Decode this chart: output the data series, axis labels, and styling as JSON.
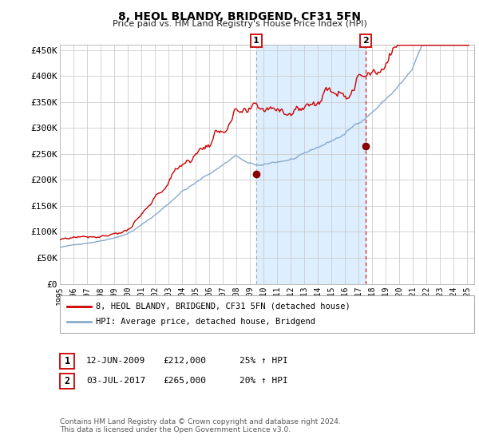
{
  "title": "8, HEOL BLANDY, BRIDGEND, CF31 5FN",
  "subtitle": "Price paid vs. HM Land Registry's House Price Index (HPI)",
  "ylabel_ticks": [
    "£0",
    "£50K",
    "£100K",
    "£150K",
    "£200K",
    "£250K",
    "£300K",
    "£350K",
    "£400K",
    "£450K"
  ],
  "ytick_values": [
    0,
    50000,
    100000,
    150000,
    200000,
    250000,
    300000,
    350000,
    400000,
    450000
  ],
  "ylim": [
    0,
    460000
  ],
  "red_line_color": "#cc0000",
  "blue_line_color": "#88aacc",
  "marker_color": "#880000",
  "sale1_year": 2009.45,
  "sale1_price": 212000,
  "sale2_year": 2017.5,
  "sale2_price": 265000,
  "shade_color": "#ddeeff",
  "vline1_color": "#aaaaaa",
  "vline2_color": "#cc0000",
  "legend_label1": "8, HEOL BLANDY, BRIDGEND, CF31 5FN (detached house)",
  "legend_label2": "HPI: Average price, detached house, Bridgend",
  "background_color": "#ffffff",
  "grid_color": "#cccccc"
}
